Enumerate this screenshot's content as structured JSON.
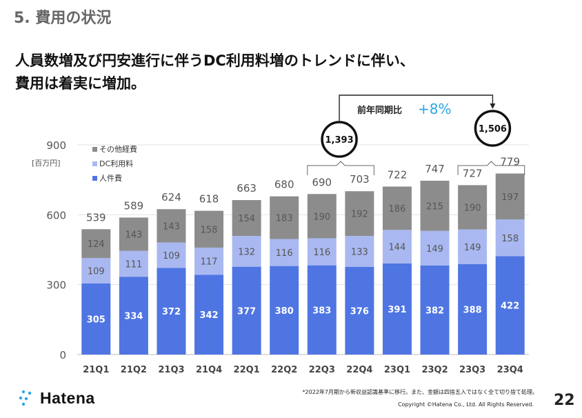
{
  "section_title": "5. 費用の状況",
  "headline": {
    "line1": "人員数増及び円安進行に伴うDC利用料増のトレンドに伴い、",
    "line2": "費用は着実に増加。"
  },
  "colors": {
    "other": "#8c8c8c",
    "dc": "#a9b8f0",
    "personnel": "#4f75e3",
    "accent": "#2aa6e8",
    "logo": "#2aa6e8"
  },
  "chart_data": {
    "type": "bar",
    "stacked": true,
    "unit": "[百万円]",
    "ylim": [
      0,
      900
    ],
    "yticks": [
      0,
      300,
      600,
      900
    ],
    "grid": true,
    "legend_position": "top-left",
    "categories": [
      "21Q1",
      "21Q2",
      "21Q3",
      "21Q4",
      "22Q1",
      "22Q2",
      "22Q3",
      "22Q4",
      "23Q1",
      "23Q2",
      "23Q3",
      "23Q4"
    ],
    "series": [
      {
        "name": "人件費",
        "values": [
          305,
          334,
          372,
          342,
          377,
          380,
          383,
          376,
          391,
          382,
          388,
          422
        ]
      },
      {
        "name": "DC利用料",
        "values": [
          109,
          111,
          109,
          117,
          132,
          116,
          116,
          133,
          144,
          149,
          149,
          158
        ]
      },
      {
        "name": "その他経費",
        "values": [
          124,
          143,
          143,
          158,
          154,
          183,
          190,
          192,
          186,
          215,
          190,
          197
        ]
      }
    ],
    "totals": [
      539,
      589,
      624,
      618,
      663,
      680,
      690,
      703,
      722,
      747,
      727,
      779
    ],
    "annotations": {
      "group_left_total": "1,393",
      "group_right_total": "1,506",
      "yoy_label": "前年同期比",
      "yoy_value": "+8%"
    }
  },
  "footer": {
    "note": "*2022年7月期から新収益認識基準に移行。また、金額は四捨五入ではなく全て切り捨て処理。",
    "copyright": "Copyright ©Hatena Co., Ltd. All Rights Reserved.",
    "page": "22",
    "logo_text": "Hatena"
  }
}
